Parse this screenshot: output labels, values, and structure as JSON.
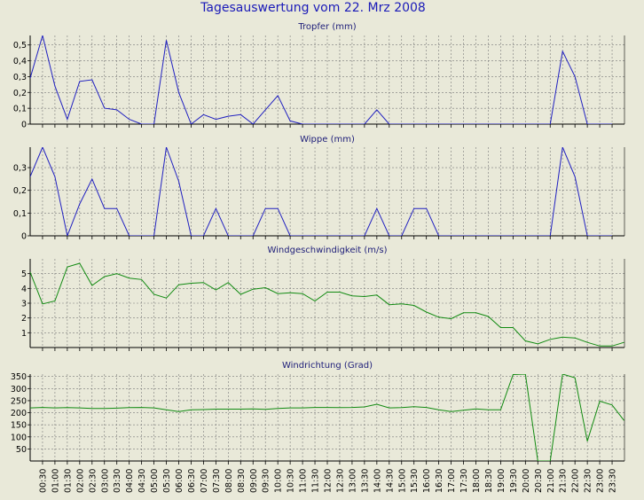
{
  "title": "Tagesauswertung vom 22. Mrz 2008",
  "x_labels": [
    "00:30",
    "01:00",
    "01:30",
    "02:00",
    "02:30",
    "03:00",
    "03:30",
    "04:00",
    "04:30",
    "05:00",
    "05:30",
    "06:00",
    "06:30",
    "07:00",
    "07:30",
    "08:00",
    "08:30",
    "09:00",
    "09:30",
    "10:00",
    "10:30",
    "11:00",
    "11:30",
    "12:00",
    "12:30",
    "13:00",
    "13:30",
    "14:00",
    "14:30",
    "15:00",
    "15:30",
    "16:00",
    "16:30",
    "17:00",
    "17:30",
    "18:00",
    "18:30",
    "19:00",
    "19:30",
    "20:00",
    "20:30",
    "21:00",
    "21:30",
    "22:00",
    "22:30",
    "23:00",
    "23:30"
  ],
  "colors": {
    "background": "#e9e9d9",
    "plot_bg": "#e9e9d9",
    "rain": "#2020c0",
    "wind": "#118a11",
    "grid": "#7a7a7a"
  },
  "chart_data": [
    {
      "type": "line",
      "title": "Tropfer (mm)",
      "color": "#2020c0",
      "ylim": [
        0,
        0.56
      ],
      "yticks": [
        0,
        0.1,
        0.2,
        0.3,
        0.4,
        0.5
      ],
      "ytick_labels": [
        "0",
        "0,1",
        "0,2",
        "0,3",
        "0,4",
        "0,5"
      ],
      "x": [
        "00:00",
        "00:30",
        "01:00",
        "01:30",
        "02:00",
        "02:30",
        "03:00",
        "03:30",
        "04:00",
        "04:30",
        "05:00",
        "05:30",
        "06:00",
        "06:30",
        "07:00",
        "07:30",
        "08:00",
        "08:30",
        "09:00",
        "09:30",
        "10:00",
        "10:30",
        "11:00",
        "11:30",
        "12:00",
        "12:30",
        "13:00",
        "13:30",
        "14:00",
        "14:30",
        "15:00",
        "15:30",
        "16:00",
        "16:30",
        "17:00",
        "17:30",
        "18:00",
        "18:30",
        "19:00",
        "19:30",
        "20:00",
        "20:30",
        "21:00",
        "21:30",
        "22:00",
        "22:30",
        "23:00",
        "23:30"
      ],
      "values": [
        0.29,
        0.57,
        0.24,
        0.03,
        0.27,
        0.28,
        0.1,
        0.09,
        0.03,
        0.0,
        0.0,
        0.53,
        0.2,
        0.0,
        0.06,
        0.03,
        0.05,
        0.06,
        0.0,
        0.09,
        0.18,
        0.02,
        0.0,
        0.0,
        0.0,
        0.0,
        0.0,
        0.0,
        0.09,
        0.0,
        0.0,
        0.0,
        0.0,
        0.0,
        0.0,
        0.0,
        0.0,
        0.0,
        0.0,
        0.0,
        0.0,
        0.0,
        0.0,
        0.46,
        0.3,
        0.0,
        0.0,
        0.0
      ],
      "grid": true
    },
    {
      "type": "line",
      "title": "Wippe (mm)",
      "color": "#2020c0",
      "ylim": [
        0,
        0.39
      ],
      "yticks": [
        0,
        0.1,
        0.2,
        0.3
      ],
      "ytick_labels": [
        "0",
        "0,1",
        "0,2",
        "0,3"
      ],
      "x": [
        "00:00",
        "00:30",
        "01:00",
        "01:30",
        "02:00",
        "02:30",
        "03:00",
        "03:30",
        "04:00",
        "04:30",
        "05:00",
        "05:30",
        "06:00",
        "06:30",
        "07:00",
        "07:30",
        "08:00",
        "08:30",
        "09:00",
        "09:30",
        "10:00",
        "10:30",
        "11:00",
        "11:30",
        "12:00",
        "12:30",
        "13:00",
        "13:30",
        "14:00",
        "14:30",
        "15:00",
        "15:30",
        "16:00",
        "16:30",
        "17:00",
        "17:30",
        "18:00",
        "18:30",
        "19:00",
        "19:30",
        "20:00",
        "20:30",
        "21:00",
        "21:30",
        "22:00",
        "22:30",
        "23:00",
        "23:30"
      ],
      "values": [
        0.26,
        0.39,
        0.26,
        0.0,
        0.14,
        0.25,
        0.12,
        0.12,
        0.0,
        0.0,
        0.0,
        0.39,
        0.24,
        0.0,
        0.0,
        0.12,
        0.0,
        0.0,
        0.0,
        0.12,
        0.12,
        0.0,
        0.0,
        0.0,
        0.0,
        0.0,
        0.0,
        0.0,
        0.12,
        0.0,
        0.0,
        0.12,
        0.12,
        0.0,
        0.0,
        0.0,
        0.0,
        0.0,
        0.0,
        0.0,
        0.0,
        0.0,
        0.0,
        0.39,
        0.26,
        0.0,
        0.0,
        0.0
      ],
      "grid": true
    },
    {
      "type": "line",
      "title": "Windgeschwindigkeit (m/s)",
      "color": "#118a11",
      "ylim": [
        0,
        6
      ],
      "yticks": [
        1,
        2,
        3,
        4,
        5
      ],
      "ytick_labels": [
        "1",
        "2",
        "3",
        "4",
        "5"
      ],
      "x": [
        "00:00",
        "00:30",
        "01:00",
        "01:30",
        "02:00",
        "02:30",
        "03:00",
        "03:30",
        "04:00",
        "04:30",
        "05:00",
        "05:30",
        "06:00",
        "06:30",
        "07:00",
        "07:30",
        "08:00",
        "08:30",
        "09:00",
        "09:30",
        "10:00",
        "10:30",
        "11:00",
        "11:30",
        "12:00",
        "12:30",
        "13:00",
        "13:30",
        "14:00",
        "14:30",
        "15:00",
        "15:30",
        "16:00",
        "16:30",
        "17:00",
        "17:30",
        "18:00",
        "18:30",
        "19:00",
        "19:30",
        "20:00",
        "20:30",
        "21:00",
        "21:30",
        "22:00",
        "22:30",
        "23:00",
        "23:30",
        "23:59"
      ],
      "values": [
        5.1,
        2.95,
        3.15,
        5.45,
        5.7,
        4.2,
        4.8,
        5.0,
        4.7,
        4.6,
        3.6,
        3.35,
        4.25,
        4.35,
        4.4,
        3.9,
        4.4,
        3.6,
        3.95,
        4.05,
        3.65,
        3.7,
        3.65,
        3.15,
        3.75,
        3.75,
        3.5,
        3.45,
        3.55,
        2.9,
        2.95,
        2.85,
        2.4,
        2.05,
        1.95,
        2.35,
        2.35,
        2.1,
        1.35,
        1.35,
        0.45,
        0.25,
        0.55,
        0.7,
        0.65,
        0.35,
        0.1,
        0.1,
        0.35
      ],
      "grid": true
    },
    {
      "type": "line",
      "title": "Windrichtung (Grad)",
      "color": "#118a11",
      "ylim": [
        0,
        360
      ],
      "yticks": [
        50,
        100,
        150,
        200,
        250,
        300,
        350
      ],
      "ytick_labels": [
        "50",
        "100",
        "150",
        "200",
        "250",
        "300",
        "350"
      ],
      "x": [
        "00:00",
        "00:30",
        "01:00",
        "01:30",
        "02:00",
        "02:30",
        "03:00",
        "03:30",
        "04:00",
        "04:30",
        "05:00",
        "05:30",
        "06:00",
        "06:30",
        "07:00",
        "07:30",
        "08:00",
        "08:30",
        "09:00",
        "09:30",
        "10:00",
        "10:30",
        "11:00",
        "11:30",
        "12:00",
        "12:30",
        "13:00",
        "13:30",
        "14:00",
        "14:30",
        "15:00",
        "15:30",
        "16:00",
        "16:30",
        "17:00",
        "17:30",
        "18:00",
        "18:30",
        "19:00",
        "19:30",
        "20:00",
        "20:30",
        "21:00",
        "21:30",
        "22:00",
        "22:30",
        "23:00",
        "23:30",
        "23:59"
      ],
      "values": [
        220,
        222,
        220,
        221,
        220,
        218,
        218,
        219,
        221,
        222,
        220,
        212,
        205,
        212,
        213,
        215,
        215,
        215,
        216,
        214,
        218,
        220,
        220,
        222,
        222,
        221,
        222,
        224,
        235,
        220,
        221,
        225,
        222,
        212,
        205,
        210,
        216,
        212,
        212,
        358,
        362,
        0,
        0,
        360,
        345,
        82,
        248,
        232,
        168
      ],
      "grid": true
    }
  ]
}
